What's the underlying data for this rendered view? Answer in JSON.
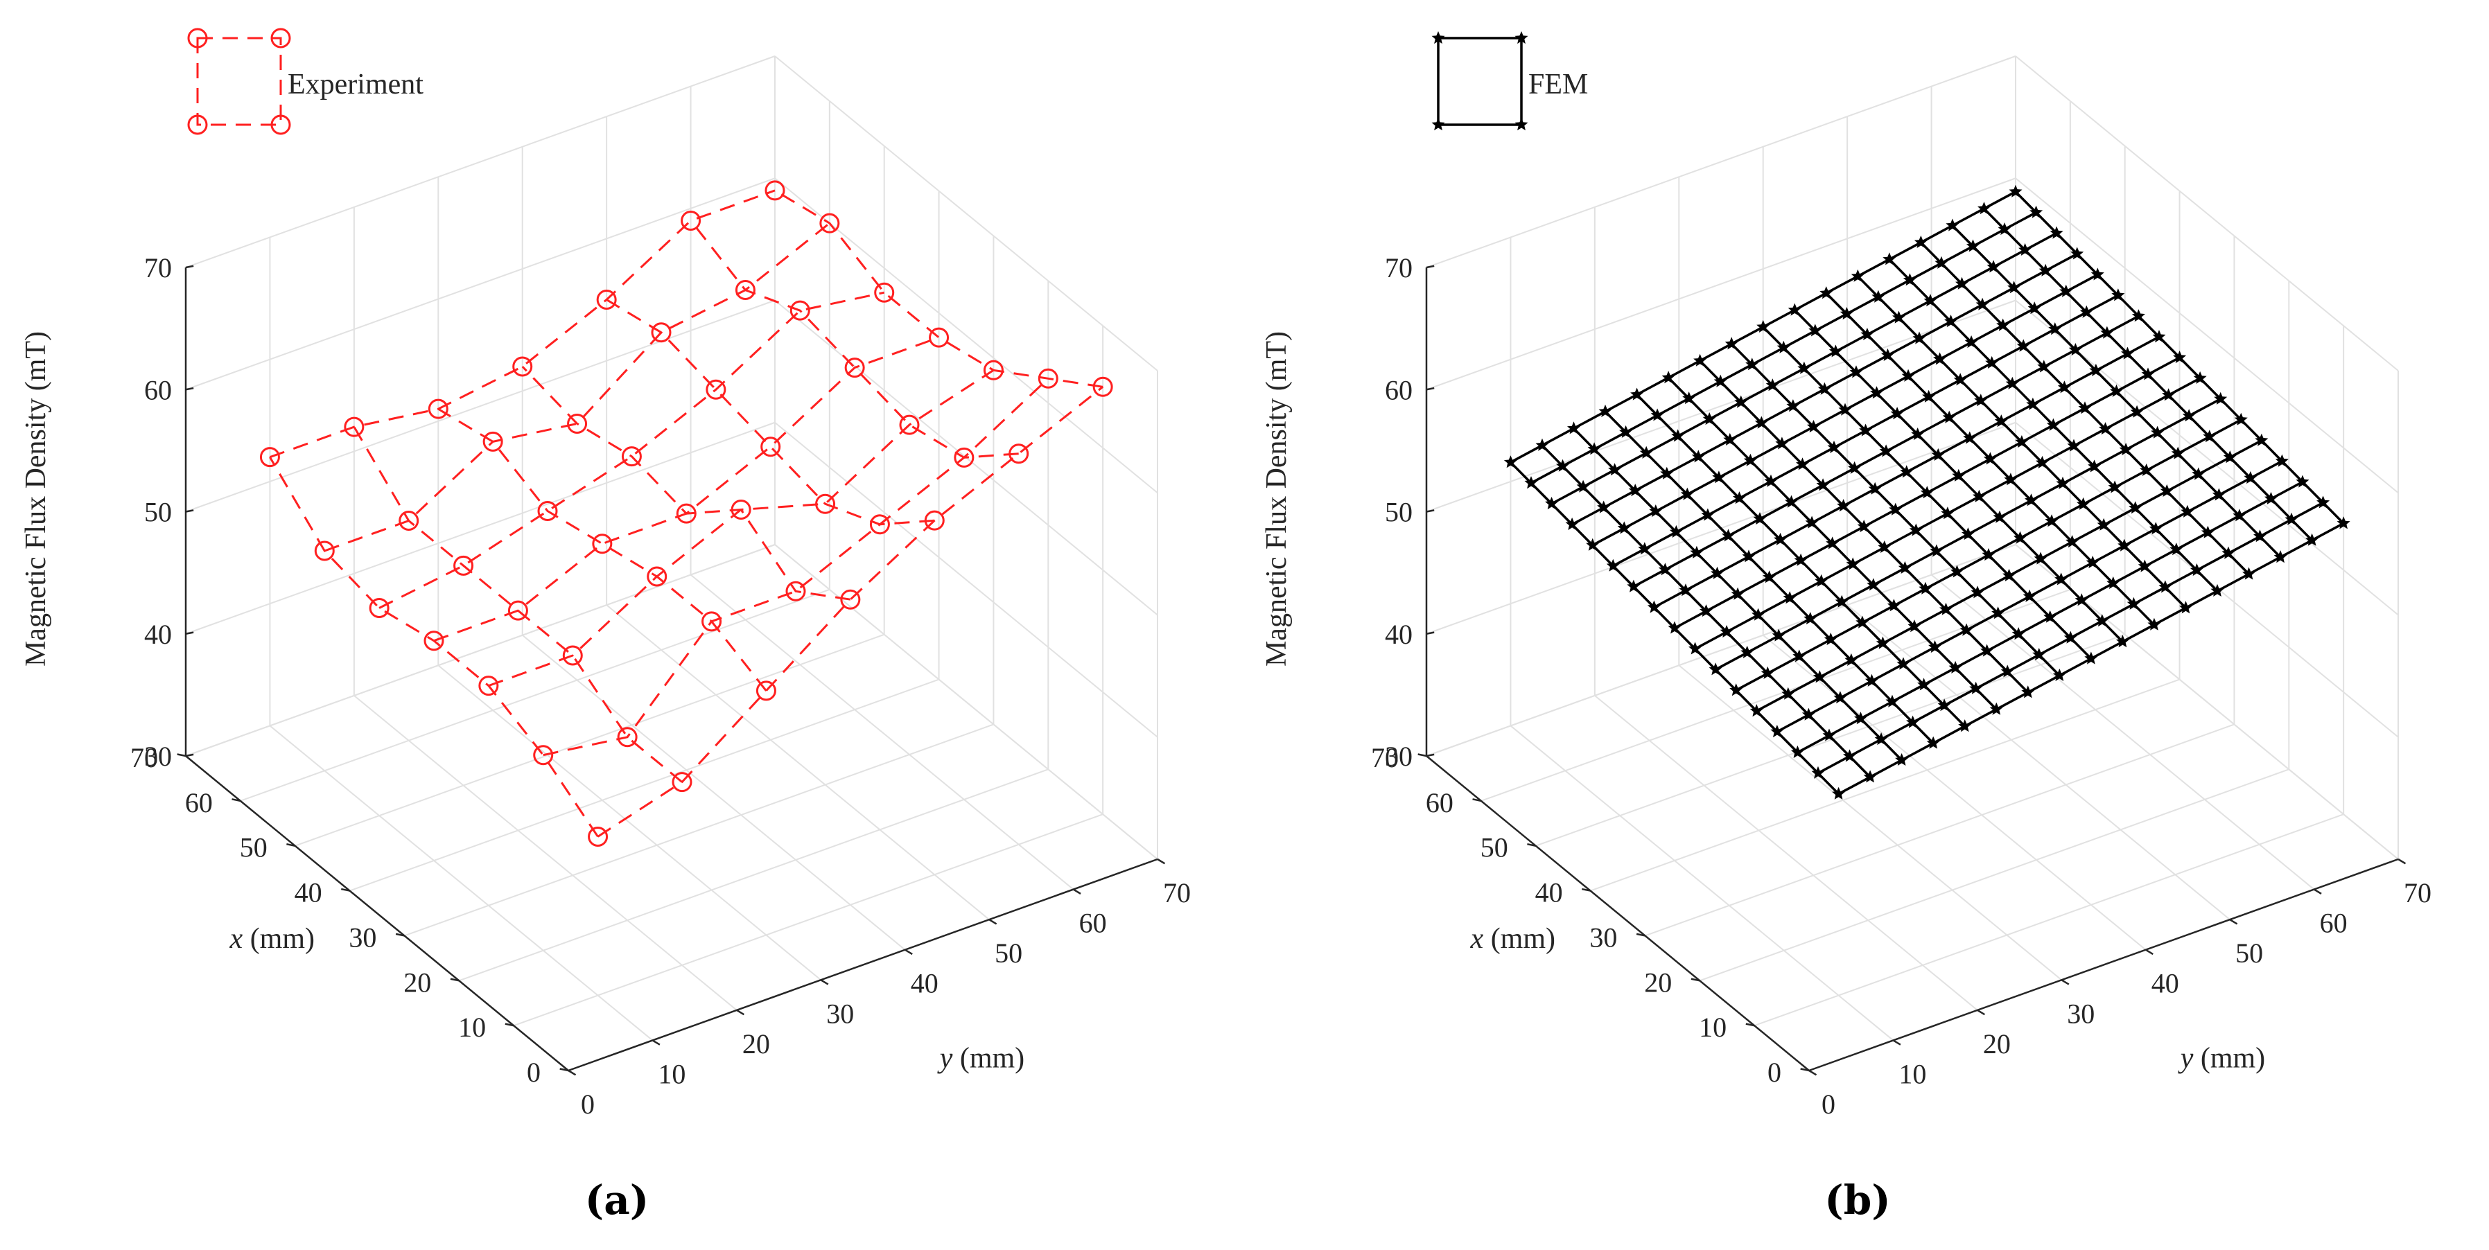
{
  "chart_data": [
    {
      "panel": "a",
      "type": "surface3d",
      "caption": "(a)",
      "legend": "Experiment",
      "marker": "circle",
      "line_style": "dashed",
      "color": "#ff2020",
      "zlabel": "Magnetic Flux Density (mT)",
      "xlabel_var": "x",
      "xlabel_unit": " (mm)",
      "ylabel_var": "y",
      "ylabel_unit": " (mm)",
      "xlim": [
        0,
        70
      ],
      "ylim": [
        0,
        70
      ],
      "zlim": [
        30,
        70
      ],
      "xticks": [
        "0",
        "10",
        "20",
        "30",
        "40",
        "50",
        "60",
        "70"
      ],
      "yticks": [
        "0",
        "10",
        "20",
        "30",
        "40",
        "50",
        "60",
        "70"
      ],
      "zticks": [
        "30",
        "40",
        "50",
        "60",
        "70"
      ],
      "x": [
        10,
        20,
        30,
        40,
        50,
        60,
        70
      ],
      "y": [
        10,
        20,
        30,
        40,
        50,
        60,
        70
      ],
      "z": [
        [
          43,
          45,
          50,
          55,
          59,
          62,
          65
        ],
        [
          46,
          45,
          52,
          52,
          55,
          58,
          62
        ],
        [
          48,
          48,
          52,
          55,
          53,
          57,
          59
        ],
        [
          48,
          48,
          51,
          51,
          54,
          58,
          58
        ],
        [
          47,
          48,
          50,
          52,
          55,
          59,
          58
        ],
        [
          48,
          48,
          52,
          51,
          56,
          57,
          60
        ],
        [
          52,
          52,
          51,
          52,
          55,
          59,
          59
        ]
      ]
    },
    {
      "panel": "b",
      "type": "surface3d",
      "caption": "(b)",
      "legend": "FEM",
      "marker": "star",
      "line_style": "solid",
      "color": "#000000",
      "zlabel": "Magnetic Flux Density (mT)",
      "xlabel_var": "x",
      "xlabel_unit": " (mm)",
      "ylabel_var": "y",
      "ylabel_unit": " (mm)",
      "xlim": [
        0,
        70
      ],
      "ylim": [
        0,
        70
      ],
      "zlim": [
        30,
        70
      ],
      "xticks": [
        "0",
        "10",
        "20",
        "30",
        "40",
        "50",
        "60",
        "70"
      ],
      "yticks": [
        "0",
        "10",
        "20",
        "30",
        "40",
        "50",
        "60",
        "70"
      ],
      "zticks": [
        "30",
        "40",
        "50",
        "60",
        "70"
      ],
      "grid_n": 17,
      "grid_step": 3.75,
      "z_model": {
        "base": 46.5,
        "slope_x": 0.0846,
        "slope_y": 0.122
      }
    }
  ]
}
